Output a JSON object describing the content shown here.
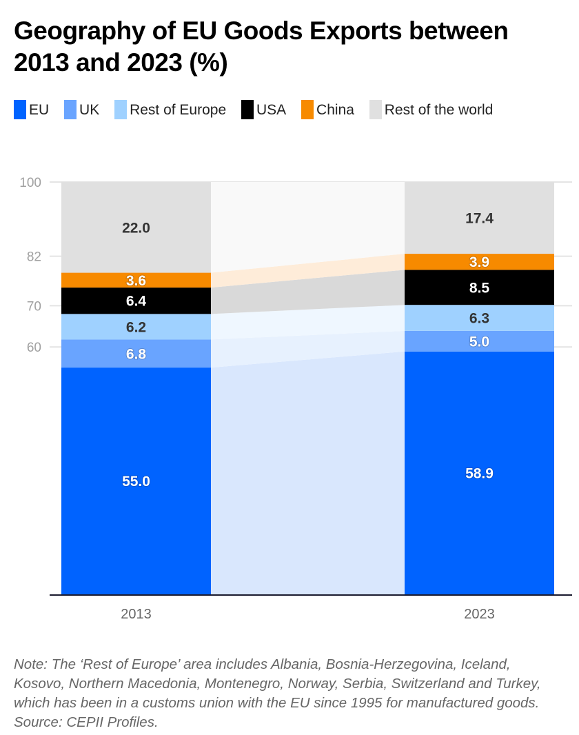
{
  "title": "Geography of EU Goods Exports between 2013 and 2023 (%)",
  "legend": [
    {
      "label": "EU",
      "color": "#0063ff"
    },
    {
      "label": "UK",
      "color": "#69a4ff"
    },
    {
      "label": "Rest of Europe",
      "color": "#9fd1ff"
    },
    {
      "label": "USA",
      "color": "#000000"
    },
    {
      "label": "China",
      "color": "#f78a00"
    },
    {
      "label": "Rest of the world",
      "color": "#e0e0e0"
    }
  ],
  "note": "Note: The ‘Rest of Europe’ area includes Albania, Bosnia-Herzegovina, Iceland, Kosovo, Northern Macedonia, Montenegro, Norway, Serbia, Switzerland and Turkey, which has been in a customs union with the EU since 1995 for manufactured goods. Source: CEPII Profiles.",
  "chart_data": {
    "type": "bar",
    "stacked": true,
    "title": "Geography of EU Goods Exports between 2013 and 2023 (%)",
    "xlabel": "",
    "ylabel": "",
    "categories": [
      "2013",
      "2023"
    ],
    "ylim": [
      0,
      100
    ],
    "yticks": [
      60,
      70,
      82,
      100
    ],
    "grid": true,
    "legend_position": "top",
    "series": [
      {
        "name": "EU",
        "color": "#0063ff",
        "label_color": "#ffffff",
        "values": [
          55.0,
          58.9
        ]
      },
      {
        "name": "UK",
        "color": "#69a4ff",
        "label_color": "#ffffff",
        "values": [
          6.8,
          5.0
        ]
      },
      {
        "name": "Rest of Europe",
        "color": "#9fd1ff",
        "label_color": "#333333",
        "values": [
          6.2,
          6.3
        ]
      },
      {
        "name": "USA",
        "color": "#000000",
        "label_color": "#ffffff",
        "values": [
          6.4,
          8.5
        ]
      },
      {
        "name": "China",
        "color": "#f78a00",
        "label_color": "#ffffff",
        "values": [
          3.6,
          3.9
        ]
      },
      {
        "name": "Rest of the world",
        "color": "#e0e0e0",
        "label_color": "#333333",
        "values": [
          22.0,
          17.4
        ]
      }
    ],
    "data_labels": [
      [
        "55.0",
        "58.9"
      ],
      [
        "6.8",
        "5.0"
      ],
      [
        "6.2",
        "6.3"
      ],
      [
        "6.4",
        "8.5"
      ],
      [
        "3.6",
        "3.9"
      ],
      [
        "22.0",
        "17.4"
      ]
    ],
    "connector_colors": [
      "#d9e7fd",
      "#e7f1fe",
      "#eff7ff",
      "#d9d9d9",
      "#feecd9",
      "#f9f9f9"
    ]
  }
}
